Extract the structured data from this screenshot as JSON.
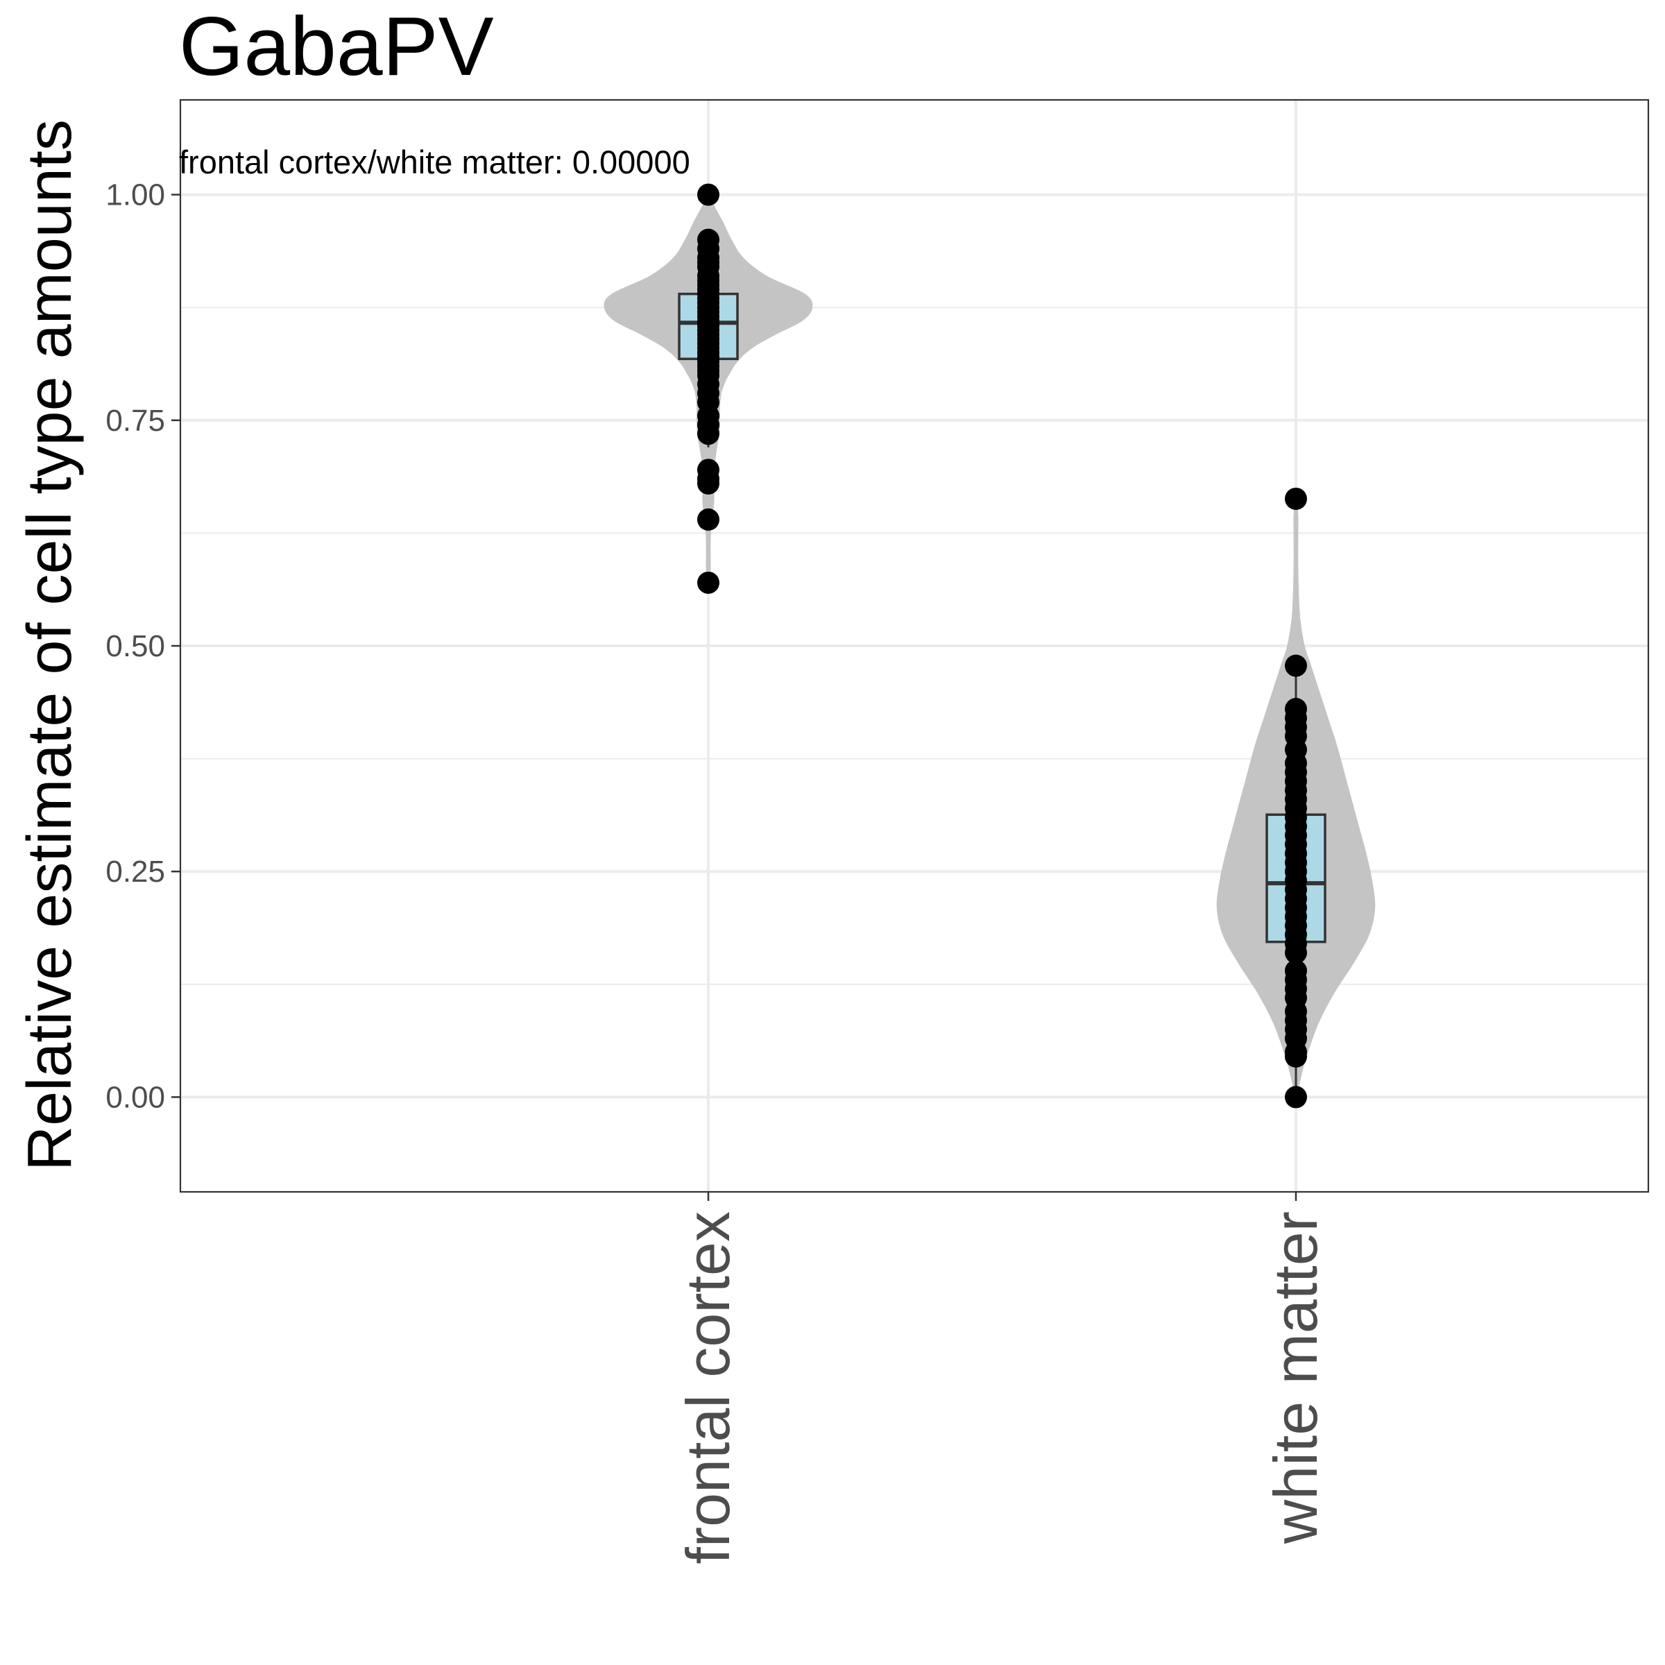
{
  "chart_data": {
    "type": "violin",
    "title": "GabaPV",
    "ylabel": "Relative estimate of cell type amounts",
    "xlabel": "",
    "categories": [
      "frontal cortex",
      "white matter"
    ],
    "ylim": [
      -0.105,
      1.105
    ],
    "y_ticks": [
      0.0,
      0.25,
      0.5,
      0.75,
      1.0
    ],
    "y_tick_labels": [
      "0.00",
      "0.25",
      "0.50",
      "0.75",
      "1.00"
    ],
    "annotation": "frontal cortex/white matter: 0.00000",
    "grid": true,
    "colors": {
      "violin": "#c4c4c4",
      "box": "#add8e6",
      "box_stroke": "#333333",
      "point": "#000000",
      "grid": "#ebebeb",
      "axis_text": "#4d4d4d"
    },
    "series": [
      {
        "category": "frontal cortex",
        "box": {
          "min": 0.72,
          "q1": 0.818,
          "median": 0.858,
          "q3": 0.89,
          "max": 0.955
        },
        "violin": [
          [
            1.0,
            0.003
          ],
          [
            0.985,
            0.025
          ],
          [
            0.97,
            0.05
          ],
          [
            0.95,
            0.08
          ],
          [
            0.93,
            0.12
          ],
          [
            0.91,
            0.2
          ],
          [
            0.89,
            0.33
          ],
          [
            0.875,
            0.355
          ],
          [
            0.86,
            0.32
          ],
          [
            0.845,
            0.23
          ],
          [
            0.83,
            0.15
          ],
          [
            0.815,
            0.1
          ],
          [
            0.8,
            0.07
          ],
          [
            0.79,
            0.055
          ],
          [
            0.78,
            0.045
          ],
          [
            0.765,
            0.04
          ],
          [
            0.75,
            0.04
          ],
          [
            0.735,
            0.038
          ],
          [
            0.72,
            0.03
          ],
          [
            0.7,
            0.022
          ],
          [
            0.68,
            0.02
          ],
          [
            0.66,
            0.02
          ],
          [
            0.645,
            0.015
          ],
          [
            0.63,
            0.01
          ],
          [
            0.615,
            0.008
          ],
          [
            0.6,
            0.008
          ],
          [
            0.585,
            0.008
          ],
          [
            0.57,
            0.003
          ]
        ],
        "points": [
          1.0,
          0.95,
          0.94,
          0.93,
          0.925,
          0.92,
          0.91,
          0.905,
          0.9,
          0.895,
          0.89,
          0.885,
          0.88,
          0.875,
          0.87,
          0.865,
          0.86,
          0.855,
          0.85,
          0.845,
          0.84,
          0.835,
          0.83,
          0.825,
          0.82,
          0.815,
          0.81,
          0.805,
          0.8,
          0.79,
          0.78,
          0.77,
          0.755,
          0.745,
          0.735,
          0.695,
          0.685,
          0.68,
          0.64,
          0.57
        ]
      },
      {
        "category": "white matter",
        "box": {
          "min": 0.0,
          "q1": 0.172,
          "median": 0.237,
          "q3": 0.313,
          "max": 0.478
        },
        "violin": [
          [
            0.663,
            0.003
          ],
          [
            0.645,
            0.008
          ],
          [
            0.62,
            0.008
          ],
          [
            0.59,
            0.008
          ],
          [
            0.56,
            0.01
          ],
          [
            0.53,
            0.015
          ],
          [
            0.5,
            0.03
          ],
          [
            0.48,
            0.05
          ],
          [
            0.45,
            0.08
          ],
          [
            0.42,
            0.11
          ],
          [
            0.39,
            0.14
          ],
          [
            0.36,
            0.165
          ],
          [
            0.33,
            0.19
          ],
          [
            0.3,
            0.215
          ],
          [
            0.27,
            0.24
          ],
          [
            0.24,
            0.26
          ],
          [
            0.21,
            0.27
          ],
          [
            0.18,
            0.25
          ],
          [
            0.15,
            0.2
          ],
          [
            0.12,
            0.14
          ],
          [
            0.1,
            0.105
          ],
          [
            0.08,
            0.075
          ],
          [
            0.06,
            0.052
          ],
          [
            0.04,
            0.032
          ],
          [
            0.02,
            0.016
          ],
          [
            0.0,
            0.003
          ]
        ],
        "points": [
          0.663,
          0.478,
          0.43,
          0.42,
          0.41,
          0.4,
          0.385,
          0.37,
          0.36,
          0.35,
          0.34,
          0.33,
          0.32,
          0.31,
          0.3,
          0.29,
          0.28,
          0.27,
          0.26,
          0.25,
          0.24,
          0.23,
          0.22,
          0.21,
          0.2,
          0.19,
          0.18,
          0.17,
          0.16,
          0.14,
          0.13,
          0.12,
          0.11,
          0.095,
          0.085,
          0.075,
          0.065,
          0.05,
          0.045,
          0.0
        ]
      }
    ]
  }
}
